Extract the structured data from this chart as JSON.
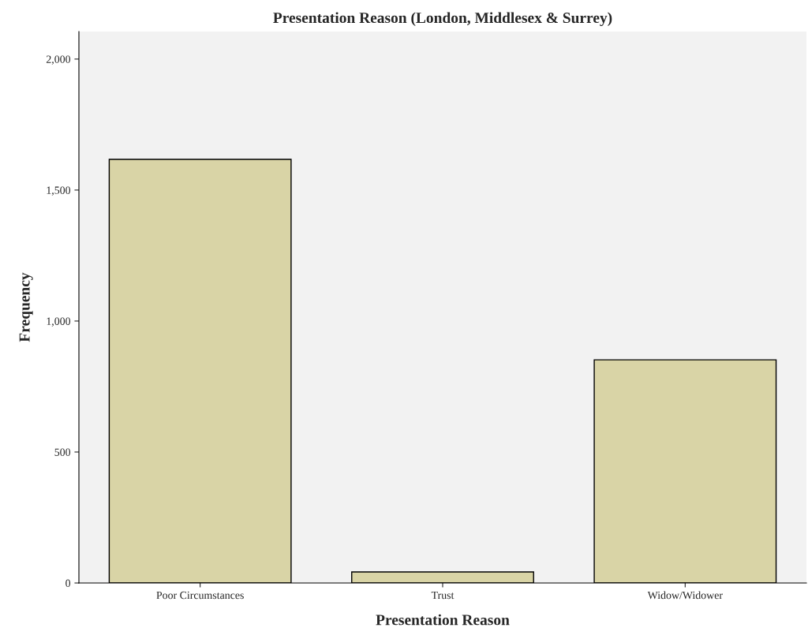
{
  "chart_data": {
    "type": "bar",
    "title": "Presentation Reason (London, Middlesex & Surrey)",
    "xlabel": "Presentation Reason",
    "ylabel": "Frequency",
    "categories": [
      "Poor Circumstances",
      "Trust",
      "Widow/Widower"
    ],
    "values": [
      1617,
      42,
      852
    ],
    "color": "#d9d4a6",
    "ylim": [
      0,
      2105
    ],
    "yticks": [
      {
        "value": 0,
        "label": "0"
      },
      {
        "value": 500,
        "label": "500"
      },
      {
        "value": 1000,
        "label": "1,000"
      },
      {
        "value": 1500,
        "label": "1,500"
      },
      {
        "value": 2000,
        "label": "2,000"
      }
    ],
    "grid": false
  }
}
